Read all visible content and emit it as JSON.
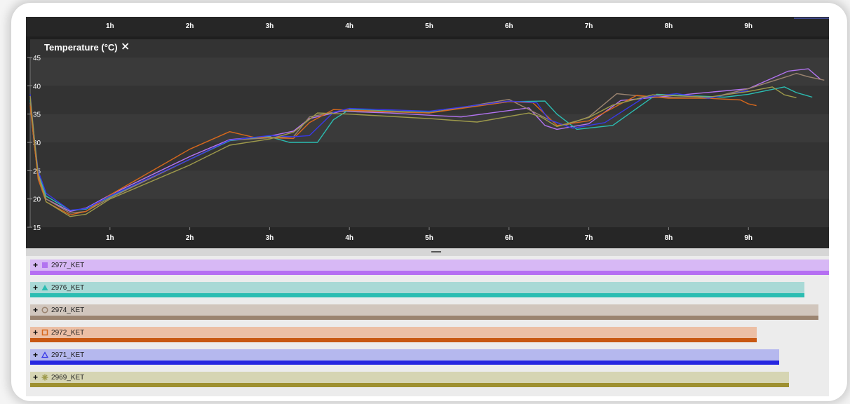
{
  "chart_data": {
    "type": "line",
    "title": "Temperature (°C)",
    "close_icon": "close-icon",
    "xlabel": "",
    "ylabel": "",
    "x_unit": "hours",
    "x_ticks": [
      "1h",
      "2h",
      "3h",
      "4h",
      "5h",
      "6h",
      "7h",
      "8h",
      "9h"
    ],
    "y_ticks": [
      "15",
      "20",
      "25",
      "30",
      "35",
      "40",
      "45"
    ],
    "xlim": [
      0,
      9.6
    ],
    "ylim": [
      15,
      45
    ],
    "grid": true,
    "series": [
      {
        "name": "2977_KET",
        "color": "#b273f0",
        "marker": "square",
        "points": [
          [
            0,
            37
          ],
          [
            0.05,
            30
          ],
          [
            0.1,
            24
          ],
          [
            0.2,
            20
          ],
          [
            0.5,
            17.8
          ],
          [
            0.7,
            18.4
          ],
          [
            1,
            20.7
          ],
          [
            2,
            27.5
          ],
          [
            2.5,
            30.5
          ],
          [
            3,
            31.1
          ],
          [
            3.3,
            32
          ],
          [
            3.5,
            34.2
          ],
          [
            3.9,
            35.5
          ],
          [
            4.5,
            35.2
          ],
          [
            5.4,
            34.5
          ],
          [
            6.25,
            36.1
          ],
          [
            6.45,
            33
          ],
          [
            6.6,
            32.3
          ],
          [
            7,
            33.3
          ],
          [
            7.4,
            37.4
          ],
          [
            8,
            38.2
          ],
          [
            9,
            39.5
          ],
          [
            9.5,
            42.6
          ],
          [
            9.75,
            43
          ],
          [
            9.9,
            41.2
          ]
        ]
      },
      {
        "name": "2976_KET",
        "color": "#2bbdb2",
        "marker": "triangle",
        "points": [
          [
            0,
            37.5
          ],
          [
            0.05,
            31
          ],
          [
            0.1,
            24.5
          ],
          [
            0.2,
            20.5
          ],
          [
            0.5,
            18
          ],
          [
            0.7,
            18.2
          ],
          [
            1,
            20.4
          ],
          [
            2,
            27
          ],
          [
            2.5,
            30.3
          ],
          [
            3,
            31
          ],
          [
            3.25,
            30
          ],
          [
            3.6,
            30
          ],
          [
            3.8,
            34
          ],
          [
            4,
            35.8
          ],
          [
            5,
            35.3
          ],
          [
            6,
            37.2
          ],
          [
            6.45,
            37.3
          ],
          [
            6.6,
            35
          ],
          [
            6.85,
            32.3
          ],
          [
            7.3,
            33
          ],
          [
            7.85,
            38.5
          ],
          [
            8.7,
            38
          ],
          [
            9,
            38.5
          ],
          [
            9.45,
            39.8
          ],
          [
            9.6,
            38.8
          ],
          [
            9.8,
            38
          ]
        ]
      },
      {
        "name": "2974_KET",
        "color": "#9b8470",
        "marker": "circle",
        "points": [
          [
            0,
            37
          ],
          [
            0.05,
            30
          ],
          [
            0.1,
            24
          ],
          [
            0.2,
            20
          ],
          [
            0.5,
            17.5
          ],
          [
            0.7,
            17.8
          ],
          [
            1,
            20.2
          ],
          [
            2,
            27
          ],
          [
            2.5,
            30.4
          ],
          [
            3,
            30.8
          ],
          [
            3.3,
            31
          ],
          [
            3.5,
            34.5
          ],
          [
            3.9,
            35.6
          ],
          [
            5,
            35.2
          ],
          [
            6,
            37.6
          ],
          [
            6.5,
            34
          ],
          [
            6.7,
            33
          ],
          [
            7,
            34.5
          ],
          [
            7.35,
            38.6
          ],
          [
            7.8,
            38
          ],
          [
            8.5,
            37.8
          ],
          [
            9,
            39.5
          ],
          [
            9.5,
            41.7
          ],
          [
            9.6,
            42.2
          ],
          [
            9.75,
            41.6
          ],
          [
            9.95,
            41
          ]
        ]
      },
      {
        "name": "2972_KET",
        "color": "#d7681c",
        "marker": "square-outline",
        "points": [
          [
            0,
            36.5
          ],
          [
            0.05,
            30
          ],
          [
            0.1,
            23.5
          ],
          [
            0.2,
            19.5
          ],
          [
            0.5,
            17.2
          ],
          [
            0.7,
            17.8
          ],
          [
            1,
            20.7
          ],
          [
            2,
            28.8
          ],
          [
            2.5,
            31.9
          ],
          [
            2.8,
            30.9
          ],
          [
            3.3,
            30.7
          ],
          [
            3.5,
            33.5
          ],
          [
            3.8,
            35.8
          ],
          [
            5,
            35.2
          ],
          [
            6,
            37.2
          ],
          [
            6.3,
            37
          ],
          [
            6.6,
            33
          ],
          [
            7,
            33.8
          ],
          [
            7.6,
            38.3
          ],
          [
            8,
            37.8
          ],
          [
            8.5,
            37.8
          ],
          [
            8.9,
            37.5
          ],
          [
            9,
            36.8
          ],
          [
            9.1,
            36.5
          ]
        ]
      },
      {
        "name": "2971_KET",
        "color": "#3838e8",
        "marker": "triangle-outline",
        "points": [
          [
            0,
            38.5
          ],
          [
            0.05,
            31
          ],
          [
            0.1,
            25
          ],
          [
            0.2,
            21
          ],
          [
            0.5,
            18
          ],
          [
            0.7,
            18.3
          ],
          [
            1,
            20.5
          ],
          [
            2,
            27
          ],
          [
            2.5,
            30.4
          ],
          [
            3,
            31.2
          ],
          [
            3.3,
            31
          ],
          [
            3.5,
            31.2
          ],
          [
            3.8,
            35.3
          ],
          [
            4,
            36
          ],
          [
            5,
            35.5
          ],
          [
            6,
            37.3
          ],
          [
            6.35,
            37
          ],
          [
            6.5,
            34
          ],
          [
            6.8,
            32.5
          ],
          [
            7.2,
            33.5
          ],
          [
            7.7,
            38
          ],
          [
            8.1,
            38.6
          ],
          [
            8.5,
            37.8
          ],
          [
            9,
            39.2
          ]
        ]
      },
      {
        "name": "2969_KET",
        "color": "#9e9a4b",
        "marker": "asterisk",
        "points": [
          [
            0,
            38.2
          ],
          [
            0.05,
            31
          ],
          [
            0.1,
            24.5
          ],
          [
            0.2,
            19.5
          ],
          [
            0.5,
            16.9
          ],
          [
            0.7,
            17.3
          ],
          [
            1,
            20
          ],
          [
            2,
            26
          ],
          [
            2.5,
            29.5
          ],
          [
            3,
            30.6
          ],
          [
            3.3,
            31.8
          ],
          [
            3.6,
            35.2
          ],
          [
            4,
            35
          ],
          [
            5,
            34.2
          ],
          [
            5.6,
            33.6
          ],
          [
            6.25,
            35.2
          ],
          [
            6.4,
            34.5
          ],
          [
            6.6,
            32.8
          ],
          [
            7,
            34.4
          ],
          [
            7.3,
            36.6
          ],
          [
            7.8,
            38.4
          ],
          [
            8.5,
            38
          ],
          [
            9,
            39
          ],
          [
            9.3,
            39.8
          ],
          [
            9.45,
            38.4
          ],
          [
            9.6,
            37.9
          ]
        ]
      }
    ]
  },
  "tracks": [
    {
      "name": "2977_KET",
      "bg": "#d7b8f5",
      "bar": "#b56ff2",
      "width_frac": 1.0,
      "marker": "square",
      "color": "#b273f0"
    },
    {
      "name": "2976_KET",
      "bg": "#a9d9d6",
      "bar": "#2bbdb2",
      "width_frac": 0.969,
      "marker": "triangle",
      "color": "#2bbdb2"
    },
    {
      "name": "2974_KET",
      "bg": "#d1c6bd",
      "bar": "#9b8470",
      "width_frac": 0.987,
      "marker": "circle",
      "color": "#9b8470"
    },
    {
      "name": "2972_KET",
      "bg": "#ecbfa5",
      "bar": "#c85812",
      "width_frac": 0.91,
      "marker": "square-outline",
      "color": "#d7681c"
    },
    {
      "name": "2971_KET",
      "bg": "#b5b8ee",
      "bar": "#2626e0",
      "width_frac": 0.938,
      "marker": "triangle-outline",
      "color": "#3838e8"
    },
    {
      "name": "2969_KET",
      "bg": "#d6d5b3",
      "bar": "#9e9030",
      "width_frac": 0.95,
      "marker": "asterisk",
      "color": "#9e9a4b"
    }
  ]
}
